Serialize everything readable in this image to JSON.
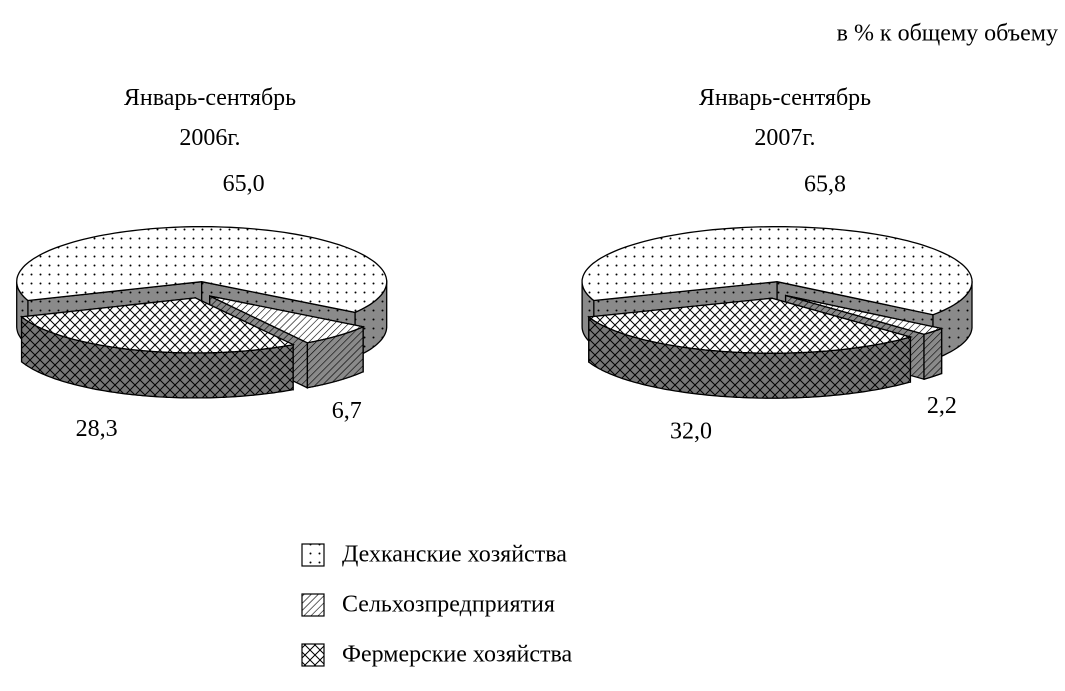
{
  "chart_data": {
    "type": "pie",
    "subtitle": "в % к общему объему",
    "categories": [
      "Дехканские хозяйства",
      "Сельхозпредприятия",
      "Фермерские хозяйства"
    ],
    "patterns": [
      "dots",
      "hatch",
      "cross"
    ],
    "series": [
      {
        "name": "Январь-сентябрь 2006г.",
        "values": [
          65.0,
          6.7,
          28.3
        ],
        "value_labels": [
          "65,0",
          "6,7",
          "28,3"
        ]
      },
      {
        "name": "Январь-сентябрь 2007г.",
        "values": [
          65.8,
          2.2,
          32.0
        ],
        "value_labels": [
          "65,8",
          "2,2",
          "32,0"
        ]
      }
    ]
  }
}
